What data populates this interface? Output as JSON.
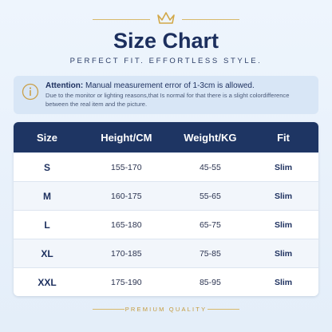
{
  "header": {
    "title": "Size Chart",
    "subtitle": "PERFECT FIT. EFFORTLESS STYLE."
  },
  "attention": {
    "label": "Attention:",
    "text": "Manual measurement error of 1-3cm is allowed.",
    "note": "Due to the monitor or lighting reasons,that Is normal for that there is a slight colordifference between the real item and the picture."
  },
  "table": {
    "columns": [
      "Size",
      "Height/CM",
      "Weight/KG",
      "Fit"
    ],
    "rows": [
      [
        "S",
        "155-170",
        "45-55",
        "Slim"
      ],
      [
        "M",
        "160-175",
        "55-65",
        "Slim"
      ],
      [
        "L",
        "165-180",
        "65-75",
        "Slim"
      ],
      [
        "XL",
        "170-185",
        "75-85",
        "Slim"
      ],
      [
        "XXL",
        "175-190",
        "85-95",
        "Slim"
      ]
    ]
  },
  "footer": {
    "text": "PREMIUM QUALITY"
  }
}
